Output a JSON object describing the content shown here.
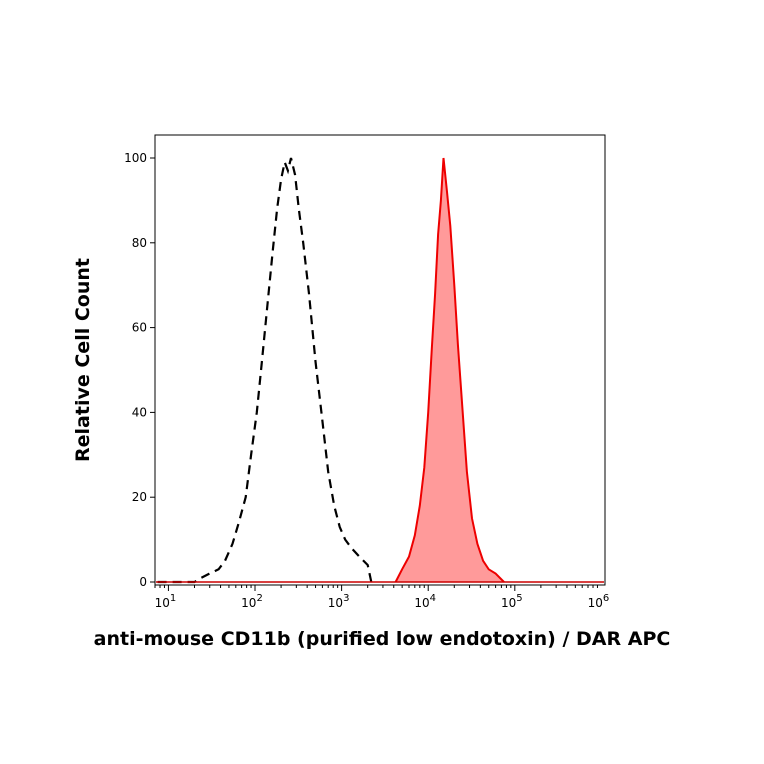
{
  "chart_data": {
    "type": "area",
    "xlabel": "anti-mouse CD11b (purified low endotoxin) / DAR APC",
    "ylabel": "Relative Cell Count",
    "x_scale": "log",
    "xlim": [
      7,
      1100000
    ],
    "ylim": [
      0,
      100
    ],
    "x_ticks": [
      {
        "value": 10,
        "base": "10",
        "exp": "1"
      },
      {
        "value": 100,
        "base": "10",
        "exp": "2"
      },
      {
        "value": 1000,
        "base": "10",
        "exp": "3"
      },
      {
        "value": 10000,
        "base": "10",
        "exp": "4"
      },
      {
        "value": 100000,
        "base": "10",
        "exp": "5"
      },
      {
        "value": 1000000,
        "base": "10",
        "exp": "6"
      }
    ],
    "y_ticks": [
      "0",
      "20",
      "40",
      "60",
      "80",
      "100"
    ],
    "grid": false,
    "series": [
      {
        "style": "dashed-outline",
        "color": "#000000",
        "points": [
          [
            7.5,
            0
          ],
          [
            20,
            0
          ],
          [
            24,
            1
          ],
          [
            30,
            2
          ],
          [
            38,
            3
          ],
          [
            45,
            5
          ],
          [
            55,
            9
          ],
          [
            65,
            14
          ],
          [
            78,
            20
          ],
          [
            90,
            30
          ],
          [
            105,
            40
          ],
          [
            120,
            52
          ],
          [
            140,
            66
          ],
          [
            160,
            78
          ],
          [
            180,
            88
          ],
          [
            200,
            95
          ],
          [
            220,
            99
          ],
          [
            240,
            97
          ],
          [
            260,
            100
          ],
          [
            290,
            96
          ],
          [
            320,
            88
          ],
          [
            360,
            80
          ],
          [
            420,
            68
          ],
          [
            500,
            52
          ],
          [
            600,
            38
          ],
          [
            700,
            26
          ],
          [
            820,
            18
          ],
          [
            950,
            13
          ],
          [
            1100,
            10
          ],
          [
            1300,
            8
          ],
          [
            1600,
            6
          ],
          [
            2000,
            4
          ],
          [
            2200,
            0
          ]
        ]
      },
      {
        "style": "filled",
        "color": "#ee0000",
        "fill": "#ff9a9a",
        "points": [
          [
            4200,
            0
          ],
          [
            5000,
            3
          ],
          [
            6000,
            6
          ],
          [
            7000,
            11
          ],
          [
            8000,
            18
          ],
          [
            9000,
            27
          ],
          [
            10000,
            40
          ],
          [
            11000,
            55
          ],
          [
            12000,
            68
          ],
          [
            13000,
            82
          ],
          [
            14000,
            90
          ],
          [
            15000,
            100
          ],
          [
            16500,
            92
          ],
          [
            18000,
            84
          ],
          [
            20000,
            70
          ],
          [
            22000,
            56
          ],
          [
            25000,
            40
          ],
          [
            28000,
            26
          ],
          [
            32000,
            15
          ],
          [
            37000,
            9
          ],
          [
            43000,
            5
          ],
          [
            50000,
            3
          ],
          [
            60000,
            2
          ],
          [
            75000,
            0
          ]
        ]
      }
    ]
  }
}
